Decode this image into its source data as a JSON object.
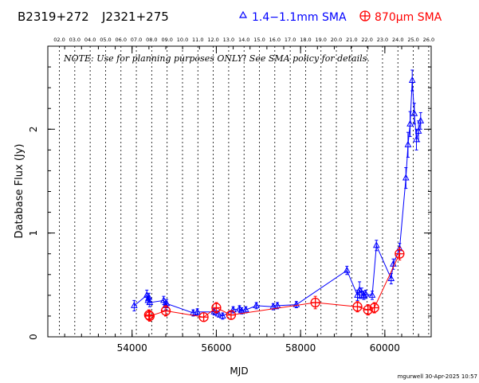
{
  "header": {
    "source_name": "B2319+272",
    "alt_name": "J2321+275",
    "legend": [
      {
        "marker": "triangle-icon",
        "label": "1.4−1.1mm SMA",
        "color": "#0000ff"
      },
      {
        "marker": "circled-plus-icon",
        "label": "870μm SMA",
        "color": "#ff0000"
      }
    ]
  },
  "note": "NOTE: Use for planning purposes ONLY!  See SMA policy for details.",
  "footer": "mgurwell 30-Apr-2025 10:57",
  "chart_data": {
    "type": "scatter",
    "title": "",
    "xlabel": "MJD",
    "ylabel": "Database Flux (Jy)",
    "xlim": [
      52000,
      61100
    ],
    "ylim": [
      0,
      2.8
    ],
    "x_ticks": [
      54000,
      56000,
      58000,
      60000
    ],
    "x_tick_labels": [
      "54000",
      "56000",
      "58000",
      "60000"
    ],
    "y_ticks": [
      0,
      1,
      2
    ],
    "y_tick_labels": [
      "0",
      "1",
      "2"
    ],
    "x_minor_step": 400,
    "y_minor_step": 0.2,
    "grid": false,
    "year_lines": {
      "labels": [
        "02.0",
        "03.0",
        "04.0",
        "05.0",
        "06.0",
        "07.0",
        "08.0",
        "09.0",
        "10.0",
        "11.0",
        "12.0",
        "13.0",
        "14.0",
        "15.0",
        "16.0",
        "17.0",
        "18.0",
        "19.0",
        "20.0",
        "21.0",
        "22.0",
        "23.0",
        "24.0",
        "25.0",
        "26.0"
      ],
      "mjd": [
        52275,
        52640,
        53005,
        53371,
        53736,
        54101,
        54466,
        54832,
        55197,
        55562,
        55927,
        56293,
        56658,
        57023,
        57388,
        57754,
        58119,
        58484,
        58849,
        59215,
        59580,
        59945,
        60310,
        60676,
        61041
      ]
    },
    "series": [
      {
        "name": "1.4−1.1mm SMA",
        "color": "#0000ff",
        "marker": "triangle",
        "x": [
          54050,
          54350,
          54380,
          54400,
          54420,
          54750,
          54800,
          54820,
          55450,
          55550,
          55950,
          56050,
          56150,
          56400,
          56550,
          56600,
          56700,
          56950,
          57350,
          57450,
          57900,
          59100,
          59350,
          59400,
          59450,
          59500,
          59550,
          59700,
          59800,
          60150,
          60200,
          60350,
          60500,
          60550,
          60600,
          60650,
          60700,
          60750,
          60800,
          60850
        ],
        "y": [
          0.3,
          0.4,
          0.35,
          0.38,
          0.33,
          0.35,
          0.3,
          0.32,
          0.23,
          0.24,
          0.24,
          0.22,
          0.2,
          0.26,
          0.27,
          0.25,
          0.26,
          0.3,
          0.29,
          0.3,
          0.31,
          0.64,
          0.4,
          0.45,
          0.42,
          0.4,
          0.41,
          0.4,
          0.88,
          0.56,
          0.7,
          0.85,
          1.53,
          1.85,
          2.05,
          2.47,
          2.15,
          1.9,
          1.98,
          2.08
        ],
        "err": [
          0.05,
          0.05,
          0.04,
          0.04,
          0.04,
          0.04,
          0.04,
          0.04,
          0.03,
          0.03,
          0.03,
          0.03,
          0.03,
          0.03,
          0.03,
          0.03,
          0.03,
          0.03,
          0.03,
          0.03,
          0.03,
          0.04,
          0.05,
          0.08,
          0.05,
          0.04,
          0.04,
          0.04,
          0.05,
          0.05,
          0.05,
          0.05,
          0.1,
          0.12,
          0.12,
          0.1,
          0.1,
          0.1,
          0.1,
          0.08
        ]
      },
      {
        "name": "870μm SMA",
        "color": "#ff0000",
        "marker": "circled-plus",
        "x": [
          54400,
          54420,
          54800,
          55700,
          56000,
          56350,
          58350,
          59350,
          59600,
          59750,
          60350
        ],
        "y": [
          0.21,
          0.2,
          0.25,
          0.19,
          0.28,
          0.21,
          0.33,
          0.29,
          0.26,
          0.28,
          0.8
        ],
        "err": [
          0.05,
          0.05,
          0.05,
          0.04,
          0.05,
          0.04,
          0.06,
          0.05,
          0.05,
          0.05,
          0.06
        ]
      }
    ]
  }
}
